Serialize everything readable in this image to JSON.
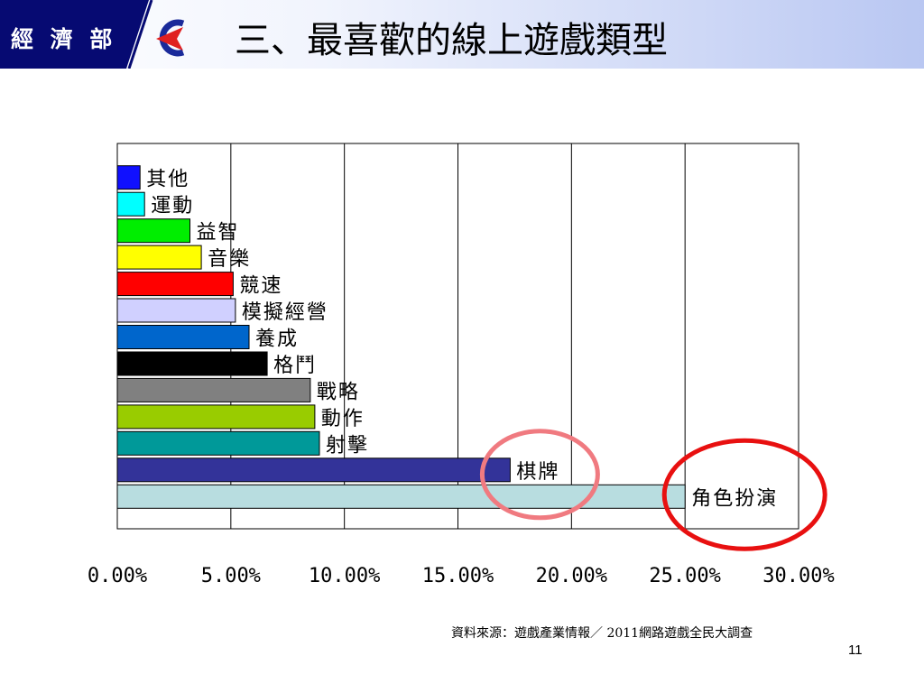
{
  "header": {
    "org_label": "經 濟 部",
    "title": "三、最喜歡的線上遊戲類型"
  },
  "colors": {
    "header_dark": "#060a72",
    "logo_red": "#e02020",
    "logo_blue": "#1a2a9a",
    "circle_pink": "#f07a80",
    "circle_red": "#e81010"
  },
  "chart_data": {
    "type": "bar",
    "orientation": "horizontal",
    "categories": [
      "其他",
      "運動",
      "益智",
      "音樂",
      "競速",
      "模擬經營",
      "養成",
      "格鬥",
      "戰略",
      "動作",
      "射擊",
      "棋牌",
      "角色扮演"
    ],
    "values": [
      1.0,
      1.2,
      3.2,
      3.7,
      5.1,
      5.2,
      5.8,
      6.6,
      8.5,
      8.7,
      8.9,
      17.3,
      25.0
    ],
    "colors": [
      "#1010ff",
      "#00ffff",
      "#00ee00",
      "#ffff00",
      "#ff0000",
      "#d0d0ff",
      "#0066cc",
      "#000000",
      "#808080",
      "#99cc00",
      "#009999",
      "#333399",
      "#b8dde0"
    ],
    "xlim": [
      0,
      30
    ],
    "x_ticks": [
      "0.00%",
      "5.00%",
      "10.00%",
      "15.00%",
      "20.00%",
      "25.00%",
      "30.00%"
    ],
    "grid": "vertical",
    "highlighted": [
      "棋牌",
      "角色扮演"
    ]
  },
  "footer": {
    "source": "資料來源：遊戲產業情報／ 2011網路遊戲全民大調查",
    "page_number": "11"
  }
}
